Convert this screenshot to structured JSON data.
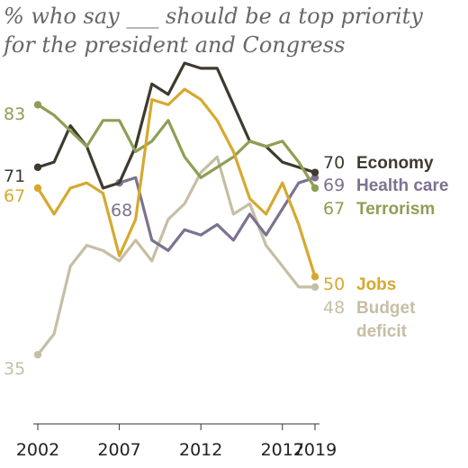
{
  "chart_data": {
    "type": "line",
    "title_lines": [
      "% who say ___ should be a top priority",
      "for the president and Congress"
    ],
    "x": [
      2002,
      2003,
      2004,
      2005,
      2006,
      2007,
      2008,
      2009,
      2010,
      2011,
      2012,
      2013,
      2014,
      2015,
      2016,
      2017,
      2018,
      2019
    ],
    "x_ticks": [
      "2002",
      "2007",
      "2012",
      "2017",
      "2019"
    ],
    "xlim": [
      2002,
      2019
    ],
    "ylim": [
      25,
      95
    ],
    "grid": false,
    "series": [
      {
        "name": "Economy",
        "key": "economy",
        "color": "#3f3a2e",
        "start_label": "71",
        "end_label": "70",
        "values": [
          71,
          72,
          79,
          75,
          67,
          68,
          75,
          87,
          85,
          91,
          90,
          90,
          83,
          76,
          75,
          72,
          71,
          70
        ]
      },
      {
        "name": "Health care",
        "key": "health",
        "color": "#7c7290",
        "start_label": "68",
        "end_label": "69",
        "values": [
          null,
          null,
          null,
          null,
          null,
          68,
          69,
          57,
          55,
          59,
          58,
          60,
          57,
          62,
          58,
          63,
          68,
          69
        ]
      },
      {
        "name": "Terrorism",
        "key": "terror",
        "color": "#8e9e54",
        "start_label": "83",
        "end_label": "67",
        "values": [
          83,
          81,
          78,
          75,
          80,
          80,
          74,
          76,
          80,
          73,
          69,
          71,
          73,
          76,
          75,
          76,
          72,
          67
        ]
      },
      {
        "name": "Jobs",
        "key": "jobs",
        "color": "#d6a92e",
        "start_label": "67",
        "end_label": "50",
        "values": [
          67,
          62,
          67,
          68,
          66,
          54,
          61,
          84,
          83,
          86,
          84,
          80,
          74,
          65,
          62,
          68,
          60,
          50
        ]
      },
      {
        "name": "Budget deficit",
        "key": "deficit",
        "color": "#c6bea5",
        "start_label": "35",
        "end_label": "48",
        "values": [
          35,
          39,
          52,
          56,
          55,
          53,
          57,
          53,
          61,
          64,
          70,
          73,
          62,
          64,
          56,
          52,
          48,
          48
        ]
      }
    ]
  },
  "labels": {
    "economy": {
      "value": "70",
      "name": "Economy"
    },
    "health": {
      "value": "69",
      "name": "Health care"
    },
    "terror": {
      "value": "67",
      "name": "Terrorism"
    },
    "jobs": {
      "value": "50",
      "name": "Jobs"
    },
    "deficit": {
      "value": "48",
      "name_line1": "Budget",
      "name_line2": "deficit"
    }
  }
}
